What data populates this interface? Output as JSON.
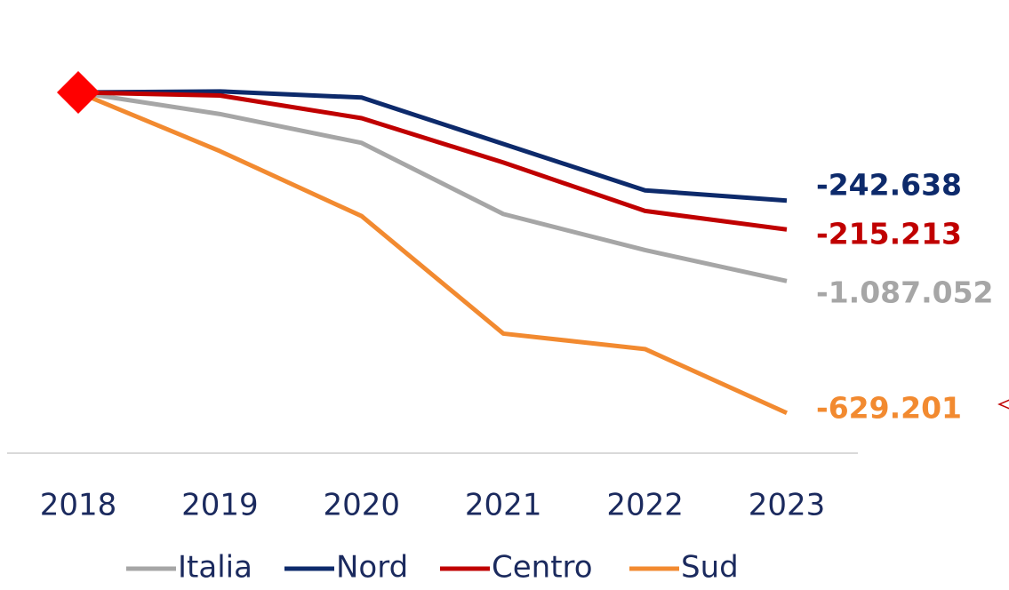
{
  "chart_data": {
    "type": "line",
    "categories": [
      "2018",
      "2019",
      "2020",
      "2021",
      "2022",
      "2023"
    ],
    "series": [
      {
        "name": "Italia",
        "color": "#a6a6a6",
        "values": [
          100,
          99.79,
          99.51,
          98.82,
          98.47,
          98.17
        ],
        "end_label": "-1.087.052"
      },
      {
        "name": "Nord",
        "color": "#0d2a6b",
        "values": [
          100,
          100.01,
          99.95,
          99.5,
          99.05,
          98.95
        ],
        "end_label": "-242.638"
      },
      {
        "name": "Centro",
        "color": "#c00000",
        "values": [
          100,
          99.97,
          99.75,
          99.32,
          98.85,
          98.67
        ],
        "end_label": "-215.213"
      },
      {
        "name": "Sud",
        "color": "#f28a30",
        "values": [
          100,
          99.43,
          98.8,
          97.66,
          97.51,
          96.89
        ],
        "end_label": "-629.201"
      }
    ],
    "ylim": [
      96.5,
      100.5
    ],
    "marker_color": "#ff0000"
  }
}
